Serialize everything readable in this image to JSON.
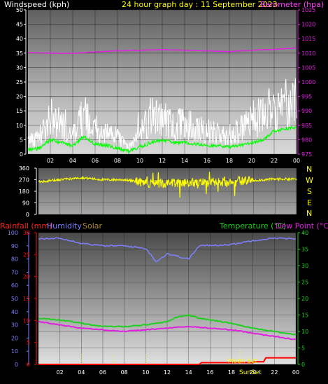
{
  "colors": {
    "background": "#000000",
    "header_white": "#ffffff",
    "header_yellow": "#ffff00",
    "header_magenta": "#ff40ff",
    "wind_gust": "#ffffff",
    "wind_avg": "#00ff00",
    "barometer": "#e020e0",
    "direction": "#ffff00",
    "rain_label": "#ff2020",
    "humidity": "#8080ff",
    "solar": "#b08a30",
    "temperature": "#20d020",
    "dew_point": "#e020e0",
    "rain": "#ff0000",
    "sun_line": "#ffff00",
    "moon_text": "#ffff00"
  },
  "header": {
    "windspeed_label": "Windspeed (kph)",
    "title": "24 hour graph day : 11 September 2023",
    "barometer_label": "Barometer (hpa)"
  },
  "middle": {
    "compass": [
      "N",
      "W",
      "S",
      "E",
      "N"
    ]
  },
  "bottom_header": {
    "rainfall_label": "Rainfall (mm)",
    "humidity_label": "Humidity",
    "solar_label": "Solar",
    "temperature_label": "Temperature (°C)",
    "dew_label": "Dew Point (°C)"
  },
  "markers": {
    "moon_set": "Moon Set",
    "sun_set": "SunSet"
  },
  "x_ticks": [
    "02",
    "04",
    "06",
    "08",
    "10",
    "12",
    "14",
    "16",
    "18",
    "20",
    "22",
    "00"
  ],
  "chart_data": [
    {
      "type": "line",
      "name": "wind-barometer",
      "x_ticks": [
        "02",
        "04",
        "06",
        "08",
        "10",
        "12",
        "14",
        "16",
        "18",
        "20",
        "22",
        "00"
      ],
      "y_left_ticks": [
        0,
        5,
        10,
        15,
        20,
        25,
        30,
        35,
        40,
        45,
        50
      ],
      "y_right_ticks": [
        975,
        980,
        985,
        990,
        995,
        1000,
        1005,
        1010,
        1015,
        1020,
        1025
      ],
      "ylim_left": [
        0,
        50
      ],
      "ylim_right": [
        975,
        1025
      ],
      "gust_profile": [
        [
          0,
          5
        ],
        [
          1,
          6
        ],
        [
          2,
          13
        ],
        [
          3,
          11
        ],
        [
          4,
          7
        ],
        [
          5,
          14
        ],
        [
          6,
          8
        ],
        [
          7,
          7
        ],
        [
          8,
          6
        ],
        [
          9,
          2
        ],
        [
          10,
          8
        ],
        [
          11,
          13
        ],
        [
          12,
          12
        ],
        [
          13,
          10
        ],
        [
          14,
          11
        ],
        [
          15,
          9
        ],
        [
          16,
          8
        ],
        [
          17,
          7
        ],
        [
          18,
          6
        ],
        [
          19,
          9
        ],
        [
          20,
          11
        ],
        [
          21,
          14
        ],
        [
          22,
          16
        ],
        [
          23,
          17
        ]
      ],
      "avg_profile": [
        [
          0,
          1.5
        ],
        [
          1,
          2
        ],
        [
          2,
          5
        ],
        [
          3,
          4
        ],
        [
          4,
          3
        ],
        [
          5,
          6
        ],
        [
          6,
          3.5
        ],
        [
          7,
          3
        ],
        [
          8,
          2
        ],
        [
          9,
          1
        ],
        [
          10,
          2.5
        ],
        [
          11,
          4
        ],
        [
          12,
          5
        ],
        [
          13,
          4
        ],
        [
          14,
          4
        ],
        [
          15,
          3.5
        ],
        [
          16,
          3
        ],
        [
          17,
          3
        ],
        [
          18,
          2.5
        ],
        [
          19,
          3
        ],
        [
          20,
          4
        ],
        [
          21,
          5
        ],
        [
          22,
          8
        ],
        [
          23,
          9
        ]
      ],
      "barometer": [
        [
          0,
          1010.2
        ],
        [
          2,
          1010.0
        ],
        [
          4,
          1009.9
        ],
        [
          6,
          1010.4
        ],
        [
          8,
          1010.8
        ],
        [
          10,
          1011.0
        ],
        [
          12,
          1011.2
        ],
        [
          14,
          1011.0
        ],
        [
          16,
          1010.8
        ],
        [
          18,
          1010.5
        ],
        [
          20,
          1011.0
        ],
        [
          22,
          1011.3
        ],
        [
          24,
          1011.8
        ]
      ]
    },
    {
      "type": "scatter",
      "name": "wind-direction",
      "y_ticks": [
        0,
        90,
        180,
        270,
        360
      ],
      "ylim": [
        0,
        360
      ],
      "profile": [
        [
          0,
          255
        ],
        [
          2,
          270
        ],
        [
          4,
          285
        ],
        [
          6,
          270
        ],
        [
          8,
          270
        ],
        [
          10,
          245
        ],
        [
          12,
          240
        ],
        [
          14,
          245
        ],
        [
          16,
          250
        ],
        [
          18,
          260
        ],
        [
          20,
          265
        ],
        [
          22,
          275
        ],
        [
          24,
          275
        ]
      ]
    },
    {
      "type": "line",
      "name": "temperature-humidity-rain",
      "x_ticks": [
        "02",
        "04",
        "06",
        "08",
        "10",
        "12",
        "14",
        "16",
        "18",
        "20",
        "22",
        "00"
      ],
      "humidity_ticks": [
        0,
        10,
        20,
        30,
        40,
        50,
        60,
        70,
        80,
        90,
        100
      ],
      "rain_ticks": [
        0,
        5,
        10,
        15,
        20,
        25,
        30
      ],
      "temp_ticks": [
        0,
        5,
        10,
        15,
        20,
        25,
        30,
        35,
        40
      ],
      "humidity": [
        [
          0,
          95
        ],
        [
          2,
          96
        ],
        [
          4,
          92
        ],
        [
          6,
          90
        ],
        [
          8,
          90
        ],
        [
          10,
          88
        ],
        [
          11,
          78
        ],
        [
          12,
          84
        ],
        [
          13,
          82
        ],
        [
          14,
          80
        ],
        [
          15,
          90
        ],
        [
          18,
          91
        ],
        [
          20,
          94
        ],
        [
          22,
          96
        ],
        [
          24,
          95
        ]
      ],
      "temperature": [
        [
          0,
          14
        ],
        [
          2,
          13.5
        ],
        [
          4,
          12.5
        ],
        [
          6,
          11.5
        ],
        [
          8,
          11.5
        ],
        [
          10,
          12
        ],
        [
          12,
          13
        ],
        [
          13,
          14.5
        ],
        [
          14,
          15
        ],
        [
          15,
          14
        ],
        [
          18,
          12.5
        ],
        [
          20,
          11
        ],
        [
          22,
          10
        ],
        [
          24,
          9
        ]
      ],
      "dew_point": [
        [
          0,
          13
        ],
        [
          2,
          12
        ],
        [
          4,
          11
        ],
        [
          6,
          10.5
        ],
        [
          8,
          10
        ],
        [
          10,
          10.5
        ],
        [
          12,
          11
        ],
        [
          14,
          11.5
        ],
        [
          16,
          11
        ],
        [
          18,
          10.5
        ],
        [
          20,
          9.5
        ],
        [
          22,
          8.5
        ],
        [
          24,
          7.5
        ]
      ],
      "rain": [
        [
          0,
          0
        ],
        [
          15,
          0
        ],
        [
          15.2,
          0.4
        ],
        [
          20,
          0.4
        ],
        [
          20.2,
          0.6
        ],
        [
          21,
          0.6
        ],
        [
          21.2,
          1.5
        ],
        [
          24,
          1.5
        ]
      ],
      "solar_ticks_at_hour": [
        4,
        7,
        10
      ]
    }
  ]
}
